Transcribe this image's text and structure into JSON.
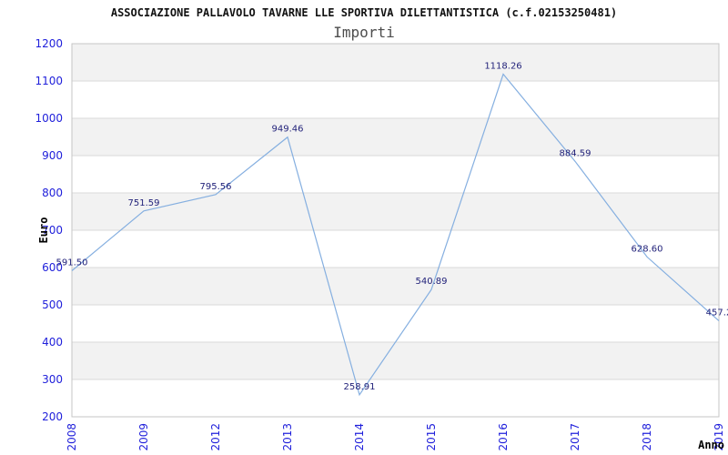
{
  "chart_data": {
    "type": "line",
    "title": "ASSOCIAZIONE PALLAVOLO TAVARNE LLE SPORTIVA DILETTANTISTICA (c.f.02153250481)",
    "subtitle": "Importi",
    "xlabel": "Anno",
    "ylabel": "Euro",
    "categories": [
      "2008",
      "2009",
      "2012",
      "2013",
      "2014",
      "2015",
      "2016",
      "2017",
      "2018",
      "2019"
    ],
    "values": [
      591.5,
      751.59,
      795.56,
      949.46,
      258.91,
      540.89,
      1118.26,
      884.59,
      628.6,
      457.2
    ],
    "point_labels": [
      "591.50",
      "751.59",
      "795.56",
      "949.46",
      "258.91",
      "540.89",
      "1118.26",
      "884.59",
      "628.60",
      "457.2"
    ],
    "ylim": [
      200,
      1200
    ],
    "ytick_step": 100,
    "grid": true,
    "legend": "none",
    "colors": {
      "line": "#85afe0",
      "band": "#f2f2f2",
      "grid": "#d9d9d9",
      "border": "#c6c6c6",
      "tick_text": "#2121db",
      "point_label_text": "#22227a",
      "title_text": "#111111",
      "subtitle_text": "#4d4d4d"
    }
  }
}
